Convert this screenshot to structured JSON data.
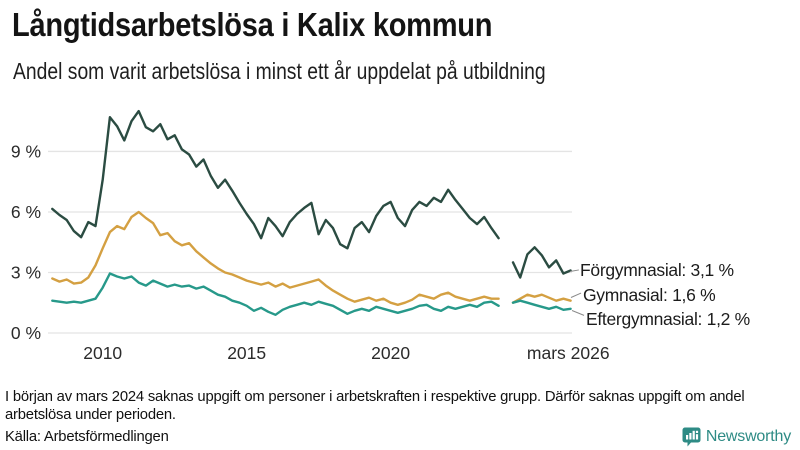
{
  "header": {
    "title": "Långtidsarbetslösa i Kalix kommun",
    "subtitle": "Andel som varit arbetslösa i minst ett år uppdelat på utbildning"
  },
  "chart_data": {
    "type": "line",
    "title": "Långtidsarbetslösa i Kalix kommun",
    "subtitle": "Andel som varit arbetslösa i minst ett år uppdelat på utbildning",
    "unit": "%",
    "grid": true,
    "x_start": 2008.25,
    "x_step": 0.25,
    "xlim": [
      2008.1,
      2026.3
    ],
    "ylim": [
      0,
      11.6
    ],
    "x_ticks": [
      {
        "value": 2010,
        "label": "2010"
      },
      {
        "value": 2015,
        "label": "2015"
      },
      {
        "value": 2020,
        "label": "2020"
      },
      {
        "value": 2026.17,
        "label": "mars 2026"
      }
    ],
    "y_ticks": [
      {
        "value": 0,
        "label": "0 %"
      },
      {
        "value": 3,
        "label": "3 %"
      },
      {
        "value": 6,
        "label": "6 %"
      },
      {
        "value": 9,
        "label": "9 %"
      }
    ],
    "gap_note": "Data saknas kring mars 2024",
    "series": [
      {
        "name": "Förgymnasial",
        "color": "#2b4c42",
        "latest_value": "3,1 %",
        "end_label": "Förgymnasial: 3,1 %",
        "values": [
          6.15,
          5.85,
          5.6,
          5.05,
          4.75,
          5.5,
          5.3,
          7.6,
          10.7,
          10.25,
          9.55,
          10.5,
          11.0,
          10.2,
          10.0,
          10.35,
          9.6,
          9.8,
          9.1,
          8.85,
          8.25,
          8.6,
          7.8,
          7.2,
          7.6,
          7.05,
          6.45,
          5.9,
          5.4,
          4.7,
          5.7,
          5.3,
          4.8,
          5.5,
          5.9,
          6.2,
          6.45,
          4.9,
          5.6,
          5.2,
          4.4,
          4.2,
          5.2,
          5.5,
          5.0,
          5.8,
          6.3,
          6.5,
          5.7,
          5.3,
          6.1,
          6.5,
          6.3,
          6.7,
          6.5,
          7.1,
          6.6,
          6.15,
          5.7,
          5.4,
          5.75,
          5.2,
          4.7,
          null,
          3.5,
          2.75,
          3.9,
          4.25,
          3.85,
          3.25,
          3.6,
          2.95,
          3.1
        ]
      },
      {
        "name": "Gymnasial",
        "color": "#d4a042",
        "latest_value": "1,6 %",
        "end_label": "Gymnasial: 1,6 %",
        "values": [
          2.7,
          2.55,
          2.65,
          2.45,
          2.5,
          2.75,
          3.35,
          4.2,
          5.0,
          5.3,
          5.15,
          5.75,
          6.0,
          5.7,
          5.45,
          4.85,
          4.95,
          4.55,
          4.35,
          4.45,
          4.05,
          3.75,
          3.45,
          3.2,
          3.0,
          2.9,
          2.75,
          2.6,
          2.5,
          2.4,
          2.5,
          2.3,
          2.45,
          2.25,
          2.35,
          2.45,
          2.55,
          2.65,
          2.35,
          2.1,
          1.9,
          1.7,
          1.55,
          1.65,
          1.75,
          1.6,
          1.7,
          1.5,
          1.4,
          1.5,
          1.65,
          1.9,
          1.8,
          1.7,
          1.9,
          2.0,
          1.8,
          1.7,
          1.6,
          1.7,
          1.8,
          1.7,
          1.7,
          null,
          1.5,
          1.7,
          1.9,
          1.8,
          1.9,
          1.75,
          1.6,
          1.7,
          1.6
        ]
      },
      {
        "name": "Eftergymnasial",
        "color": "#27998a",
        "latest_value": "1,2 %",
        "end_label": "Eftergymnasial: 1,2 %",
        "values": [
          1.6,
          1.55,
          1.5,
          1.55,
          1.5,
          1.6,
          1.7,
          2.25,
          2.95,
          2.8,
          2.7,
          2.8,
          2.5,
          2.35,
          2.6,
          2.45,
          2.3,
          2.4,
          2.3,
          2.35,
          2.2,
          2.3,
          2.1,
          1.9,
          1.8,
          1.6,
          1.5,
          1.35,
          1.1,
          1.25,
          1.05,
          0.9,
          1.15,
          1.3,
          1.4,
          1.5,
          1.4,
          1.55,
          1.45,
          1.35,
          1.15,
          0.95,
          1.1,
          1.2,
          1.1,
          1.3,
          1.2,
          1.1,
          1.0,
          1.1,
          1.2,
          1.35,
          1.4,
          1.2,
          1.1,
          1.3,
          1.2,
          1.3,
          1.4,
          1.3,
          1.5,
          1.55,
          1.35,
          null,
          1.5,
          1.6,
          1.5,
          1.4,
          1.3,
          1.2,
          1.3,
          1.15,
          1.2
        ]
      }
    ]
  },
  "footer": {
    "footnote": "I början av mars 2024 saknas uppgift om personer i arbetskraften i respektive grupp. Därför saknas uppgift om andel arbetslösa under perioden.",
    "source": "Källa: Arbetsförmedlingen",
    "logo_text": "Newsworthy",
    "logo_color": "#2e8b85"
  }
}
